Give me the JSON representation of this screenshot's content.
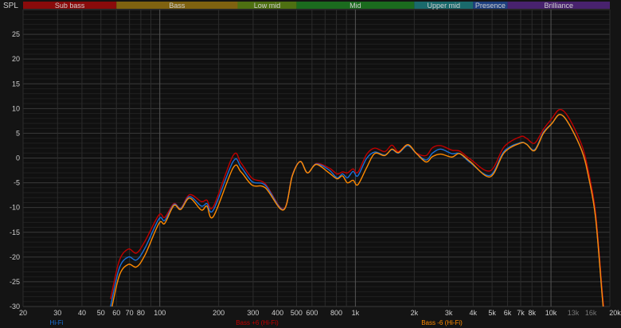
{
  "chart_data": {
    "type": "line",
    "ylabel": "SPL",
    "xscale": "log",
    "xlim": [
      20,
      20000
    ],
    "ylim": [
      -30,
      30
    ],
    "grid": true,
    "legend_position": "bottom",
    "y_ticks": [
      25,
      20,
      15,
      10,
      5,
      0,
      -5,
      -10,
      -15,
      -20,
      -25,
      -30
    ],
    "x_ticks": [
      {
        "v": 20,
        "label": "20"
      },
      {
        "v": 30,
        "label": "30"
      },
      {
        "v": 40,
        "label": "40"
      },
      {
        "v": 50,
        "label": "50"
      },
      {
        "v": 60,
        "label": "60"
      },
      {
        "v": 70,
        "label": "70"
      },
      {
        "v": 80,
        "label": "80"
      },
      {
        "v": 100,
        "label": "100"
      },
      {
        "v": 200,
        "label": "200"
      },
      {
        "v": 300,
        "label": "300"
      },
      {
        "v": 400,
        "label": "400"
      },
      {
        "v": 500,
        "label": "500"
      },
      {
        "v": 600,
        "label": "600"
      },
      {
        "v": 800,
        "label": "800"
      },
      {
        "v": 1000,
        "label": "1k"
      },
      {
        "v": 2000,
        "label": "2k"
      },
      {
        "v": 3000,
        "label": "3k"
      },
      {
        "v": 4000,
        "label": "4k"
      },
      {
        "v": 5000,
        "label": "5k"
      },
      {
        "v": 6000,
        "label": "6k"
      },
      {
        "v": 7000,
        "label": "7k"
      },
      {
        "v": 8000,
        "label": "8k"
      },
      {
        "v": 10000,
        "label": "10k"
      },
      {
        "v": 13000,
        "label": "13k",
        "dim": true
      },
      {
        "v": 16000,
        "label": "16k",
        "dim": true
      },
      {
        "v": 20000,
        "label": "20kHz"
      }
    ],
    "bands": [
      {
        "name": "Sub bass",
        "from": 20,
        "to": 60,
        "color": "#8a0b0b"
      },
      {
        "name": "Bass",
        "from": 60,
        "to": 250,
        "color": "#7f6210"
      },
      {
        "name": "Low mid",
        "from": 250,
        "to": 500,
        "color": "#4e7012"
      },
      {
        "name": "Mid",
        "from": 500,
        "to": 2000,
        "color": "#1b6b1e"
      },
      {
        "name": "Upper mid",
        "from": 2000,
        "to": 4000,
        "color": "#1a6a6c"
      },
      {
        "name": "Presence",
        "from": 4000,
        "to": 6000,
        "color": "#1e4080"
      },
      {
        "name": "Brilliance",
        "from": 6000,
        "to": 20000,
        "color": "#48226e"
      }
    ],
    "x": [
      56,
      62,
      69,
      76,
      84,
      99,
      106,
      118,
      128,
      142,
      163,
      174,
      188,
      237,
      260,
      297,
      346,
      429,
      476,
      523,
      569,
      631,
      733,
      806,
      859,
      910,
      973,
      1029,
      1140,
      1254,
      1414,
      1537,
      1660,
      1854,
      2053,
      2300,
      2480,
      2730,
      3110,
      3410,
      3860,
      4880,
      5770,
      6970,
      7490,
      8250,
      9150,
      10120,
      11090,
      12300,
      14400,
      15600,
      16900,
      18290,
      18600
    ],
    "series": [
      {
        "name": "Hi-Fi",
        "color": "#1a70d8",
        "values": [
          -30,
          -22.3,
          -20,
          -20.6,
          -18.2,
          -12.3,
          -12.6,
          -9.4,
          -10.2,
          -7.8,
          -9.7,
          -9.2,
          -10.5,
          -0.7,
          -1.8,
          -4.8,
          -5.5,
          -10.4,
          -3.5,
          -0.7,
          -3,
          -1.2,
          -2.4,
          -4,
          -3.2,
          -4,
          -2.7,
          -3.6,
          -0.1,
          1.2,
          0.6,
          1.7,
          1,
          2.5,
          0.9,
          -0.4,
          1,
          1.8,
          0.9,
          0.9,
          -0.9,
          -3.5,
          1.4,
          3.1,
          2.8,
          1.7,
          5.2,
          7,
          8.8,
          7,
          1.4,
          -4,
          -12,
          -28,
          -31
        ]
      },
      {
        "name": "Bass +6 (Hi-Fi)",
        "color": "#c00000",
        "values": [
          -28.5,
          -20.8,
          -18.4,
          -19.2,
          -16.8,
          -11.5,
          -12,
          -9.2,
          -10.1,
          -7.4,
          -8.8,
          -8.5,
          -9.8,
          0.5,
          -1,
          -4.1,
          -5.2,
          -10.3,
          -3.4,
          -0.7,
          -3,
          -1.1,
          -2,
          -3.2,
          -2.8,
          -3,
          -2.2,
          -2.9,
          0.7,
          2,
          1.3,
          2.6,
          1.3,
          2.7,
          1,
          0.5,
          2.1,
          2.5,
          1.6,
          1.4,
          -0.2,
          -2.6,
          2.3,
          4.3,
          4,
          3,
          5.8,
          8,
          9.8,
          8.2,
          2.5,
          -3,
          -11,
          -27,
          -30
        ]
      },
      {
        "name": "Bass -6 (Hi-Fi)",
        "color": "#ff8a00",
        "values": [
          -31.5,
          -23.8,
          -21.5,
          -22,
          -19.6,
          -13.2,
          -13.2,
          -9.6,
          -10.4,
          -8.1,
          -10.5,
          -9.7,
          -11.8,
          -2,
          -2.8,
          -5.5,
          -6,
          -10.5,
          -3.6,
          -0.7,
          -3,
          -1.3,
          -3,
          -4.2,
          -3.6,
          -5,
          -4.5,
          -5.4,
          -2,
          0.9,
          0.5,
          1.8,
          1.1,
          2.7,
          0.9,
          -0.8,
          0.3,
          0.8,
          0.2,
          0.9,
          -0.7,
          -3.8,
          1.1,
          3,
          2.8,
          1.5,
          5,
          7,
          8.8,
          7,
          1.4,
          -4,
          -12,
          -28,
          -31
        ]
      }
    ]
  }
}
